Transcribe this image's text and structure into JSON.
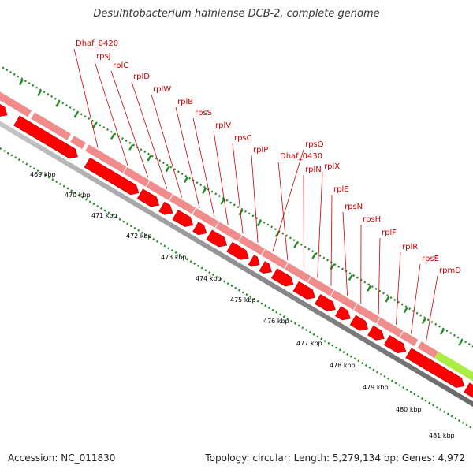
{
  "title": "Desulfitobacterium hafniense DCB-2, complete genome",
  "accession": "Accession: NC_011830",
  "summary": "Topology: circular; Length: 5,279,134 bp; Genes: 4,972",
  "colors": {
    "cds_light": "#f08c8c",
    "cds_red": "#ff0000",
    "highlight_green": "#aaee44",
    "highlight_blue": "#22bbee",
    "backbone": "#888888",
    "label_line": "#cc0000",
    "tick": "#228b22"
  },
  "gene_labels": [
    "Dhaf_0420",
    "rpsJ",
    "rplC",
    "rplD",
    "rplW",
    "rplB",
    "rpsS",
    "rplV",
    "rpsC",
    "rplP",
    "rpsQ",
    "Dhaf_0430",
    "rplN",
    "rplX",
    "rplE",
    "rpsN",
    "rpsH",
    "rplF",
    "rplR",
    "rpsE",
    "rpmD"
  ],
  "position_labels": [
    "469 kbp",
    "470 kbp",
    "471 kbp",
    "472 kbp",
    "473 kbp",
    "474 kbp",
    "475 kbp",
    "476 kbp",
    "477 kbp",
    "478 kbp",
    "479 kbp",
    "480 kbp",
    "481 kbp"
  ]
}
